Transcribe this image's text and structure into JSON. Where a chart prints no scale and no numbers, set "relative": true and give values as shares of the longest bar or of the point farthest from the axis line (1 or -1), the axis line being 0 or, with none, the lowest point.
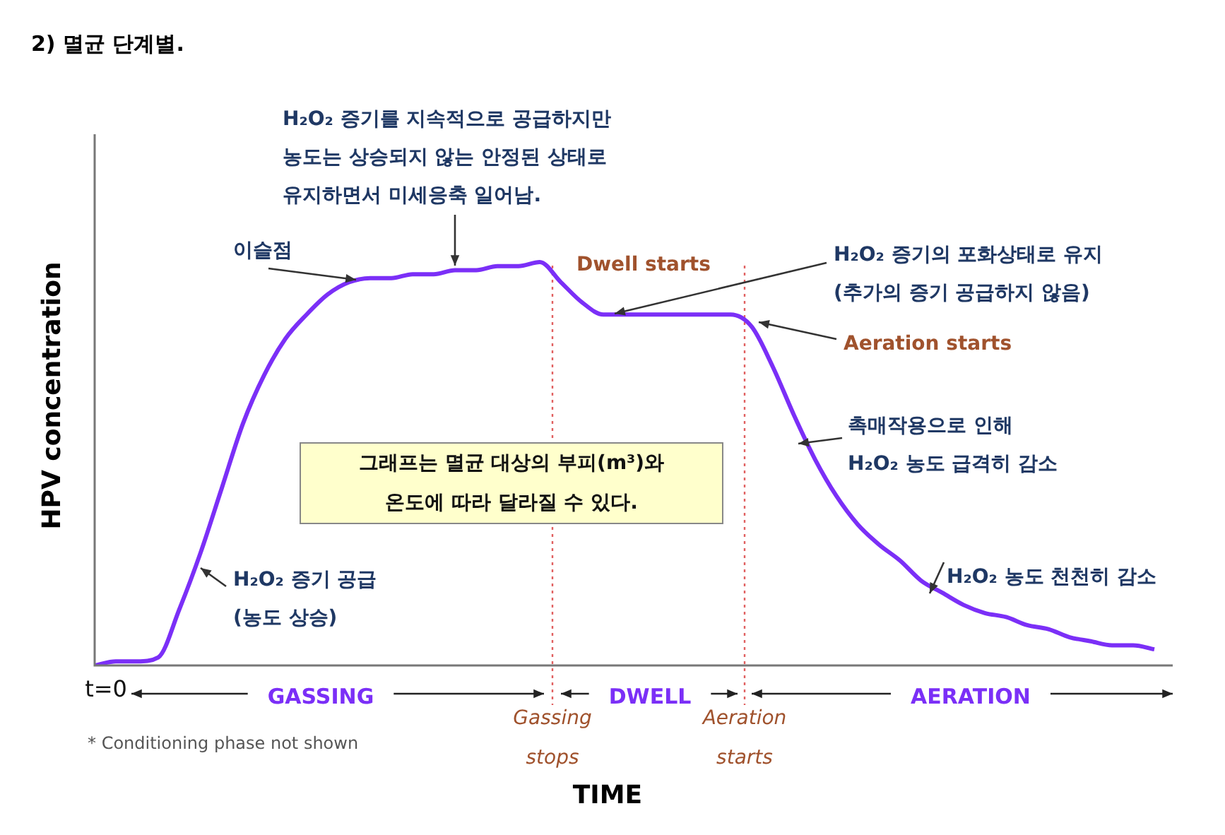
{
  "chart_data": {
    "type": "line",
    "title": "2) 멸균 단계별.",
    "xlabel": "TIME",
    "ylabel": "HPV concentration",
    "relative": true,
    "categories": [
      null,
      null,
      null,
      null,
      null,
      null,
      null,
      null,
      null,
      null,
      null,
      null,
      null,
      null,
      null,
      null,
      null,
      null,
      null,
      null,
      null,
      null,
      null,
      null,
      null,
      null,
      null,
      null,
      null,
      null,
      null,
      null,
      null,
      null,
      null,
      null,
      null,
      null,
      null,
      null,
      null,
      null,
      null,
      null,
      null,
      null,
      null,
      null,
      null,
      null,
      null
    ],
    "series": [
      {
        "color": "#7b2ff7",
        "values": [
          0,
          0.01,
          0.01,
          0.02,
          0.14,
          0.28,
          0.44,
          0.6,
          0.72,
          0.81,
          0.87,
          0.92,
          0.95,
          0.96,
          0.96,
          0.97,
          0.97,
          0.98,
          0.98,
          0.99,
          0.99,
          1,
          0.95,
          0.9,
          0.87,
          0.87,
          0.87,
          0.87,
          0.87,
          0.87,
          0.87,
          0.84,
          0.74,
          0.62,
          0.51,
          0.42,
          0.35,
          0.3,
          0.26,
          0.21,
          0.18,
          0.15,
          0.13,
          0.12,
          0.1,
          0.09,
          0.07,
          0.06,
          0.05,
          0.05,
          0.04
        ]
      }
    ],
    "marker": "none",
    "line_style": "solid",
    "legend": false,
    "annotations": [
      "H₂O₂ 증기를 지속적으로 공급하지만\n농도는 상승되지 않는 안정된 상태로\n유지하면서 미세응축 일어남.",
      "이슬점",
      "Dwell starts",
      "H₂O₂ 증기의 포화상태로 유지\n(추가의 증기 공급하지 않음)",
      "Aeration starts",
      "촉매작용으로 인해\nH₂O₂ 농도 급격히 감소",
      "H₂O₂ 농도 천천히 감소",
      "H₂O₂ 증기 공급\n(농도 상승)",
      "그래프는 멸균 대상의 부피(m³)와\n온도에 따라 달라질 수 있다.",
      "* Conditioning phase not shown",
      "GASSING",
      "DWELL",
      "AERATION",
      "Gassing stops",
      "Aeration starts",
      "t=0"
    ]
  }
}
